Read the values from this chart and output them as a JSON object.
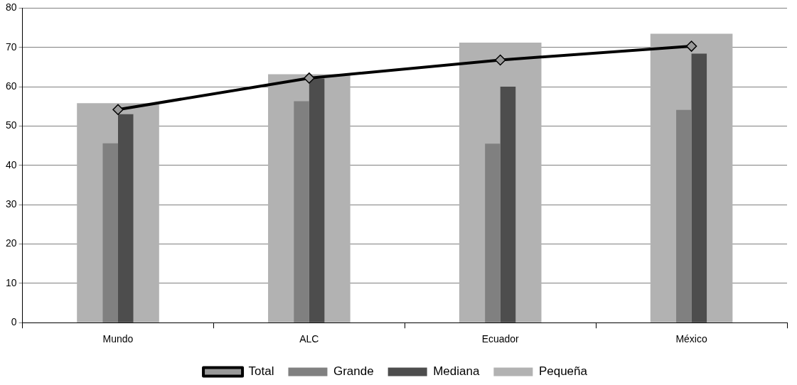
{
  "chart_data": {
    "type": "bar",
    "categories": [
      "Mundo",
      "ALC",
      "Ecuador",
      "México"
    ],
    "series": [
      {
        "name": "Pequeña",
        "color": "#b2b2b2",
        "values": [
          55.8,
          63.2,
          71.2,
          73.5
        ]
      },
      {
        "name": "Grande",
        "color": "#808080",
        "values": [
          45.6,
          56.3,
          45.5,
          54.1
        ]
      },
      {
        "name": "Mediana",
        "color": "#4d4d4d",
        "values": [
          53.0,
          62.1,
          60.0,
          68.4
        ]
      },
      {
        "name": "Total",
        "type": "line",
        "color": "#000000",
        "values": [
          54.2,
          62.2,
          66.8,
          70.3
        ],
        "marker": "diamond"
      }
    ],
    "ylim": [
      0,
      80
    ],
    "yticks": [
      0,
      10,
      20,
      30,
      40,
      50,
      60,
      70,
      80
    ],
    "grid": "y",
    "legend": "bottom"
  }
}
